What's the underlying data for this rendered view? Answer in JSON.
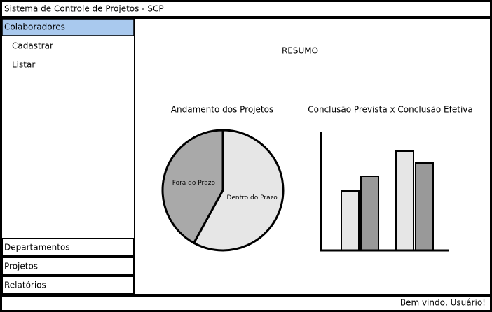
{
  "header": {
    "title": "Sistema de Controle de Projetos - SCP"
  },
  "menu": {
    "items": [
      {
        "label": "Colaboradores",
        "selected": true,
        "subitems": [
          "Cadastrar",
          "Listar"
        ]
      },
      {
        "label": "Departamentos"
      },
      {
        "label": "Projetos"
      },
      {
        "label": "Relatórios"
      }
    ]
  },
  "content": {
    "title": "RESUMO"
  },
  "chart_data": [
    {
      "type": "pie",
      "title": "Andamento dos Projetos",
      "categories": [
        "Dentro do Prazo",
        "Fora do Prazo"
      ],
      "values": [
        58,
        42
      ],
      "colors": [
        "#e6e6e6",
        "#a9a9a9"
      ]
    },
    {
      "type": "bar",
      "title": "Conclusão Prevista x Conclusão Efetiva",
      "series": [
        {
          "color": "#e6e6e6",
          "values": [
            85,
            142
          ]
        },
        {
          "color": "#999999",
          "values": [
            106,
            125
          ]
        }
      ],
      "ylim": [
        0,
        170
      ]
    }
  ],
  "footer": {
    "text": "Bem vindo, Usuário!"
  }
}
